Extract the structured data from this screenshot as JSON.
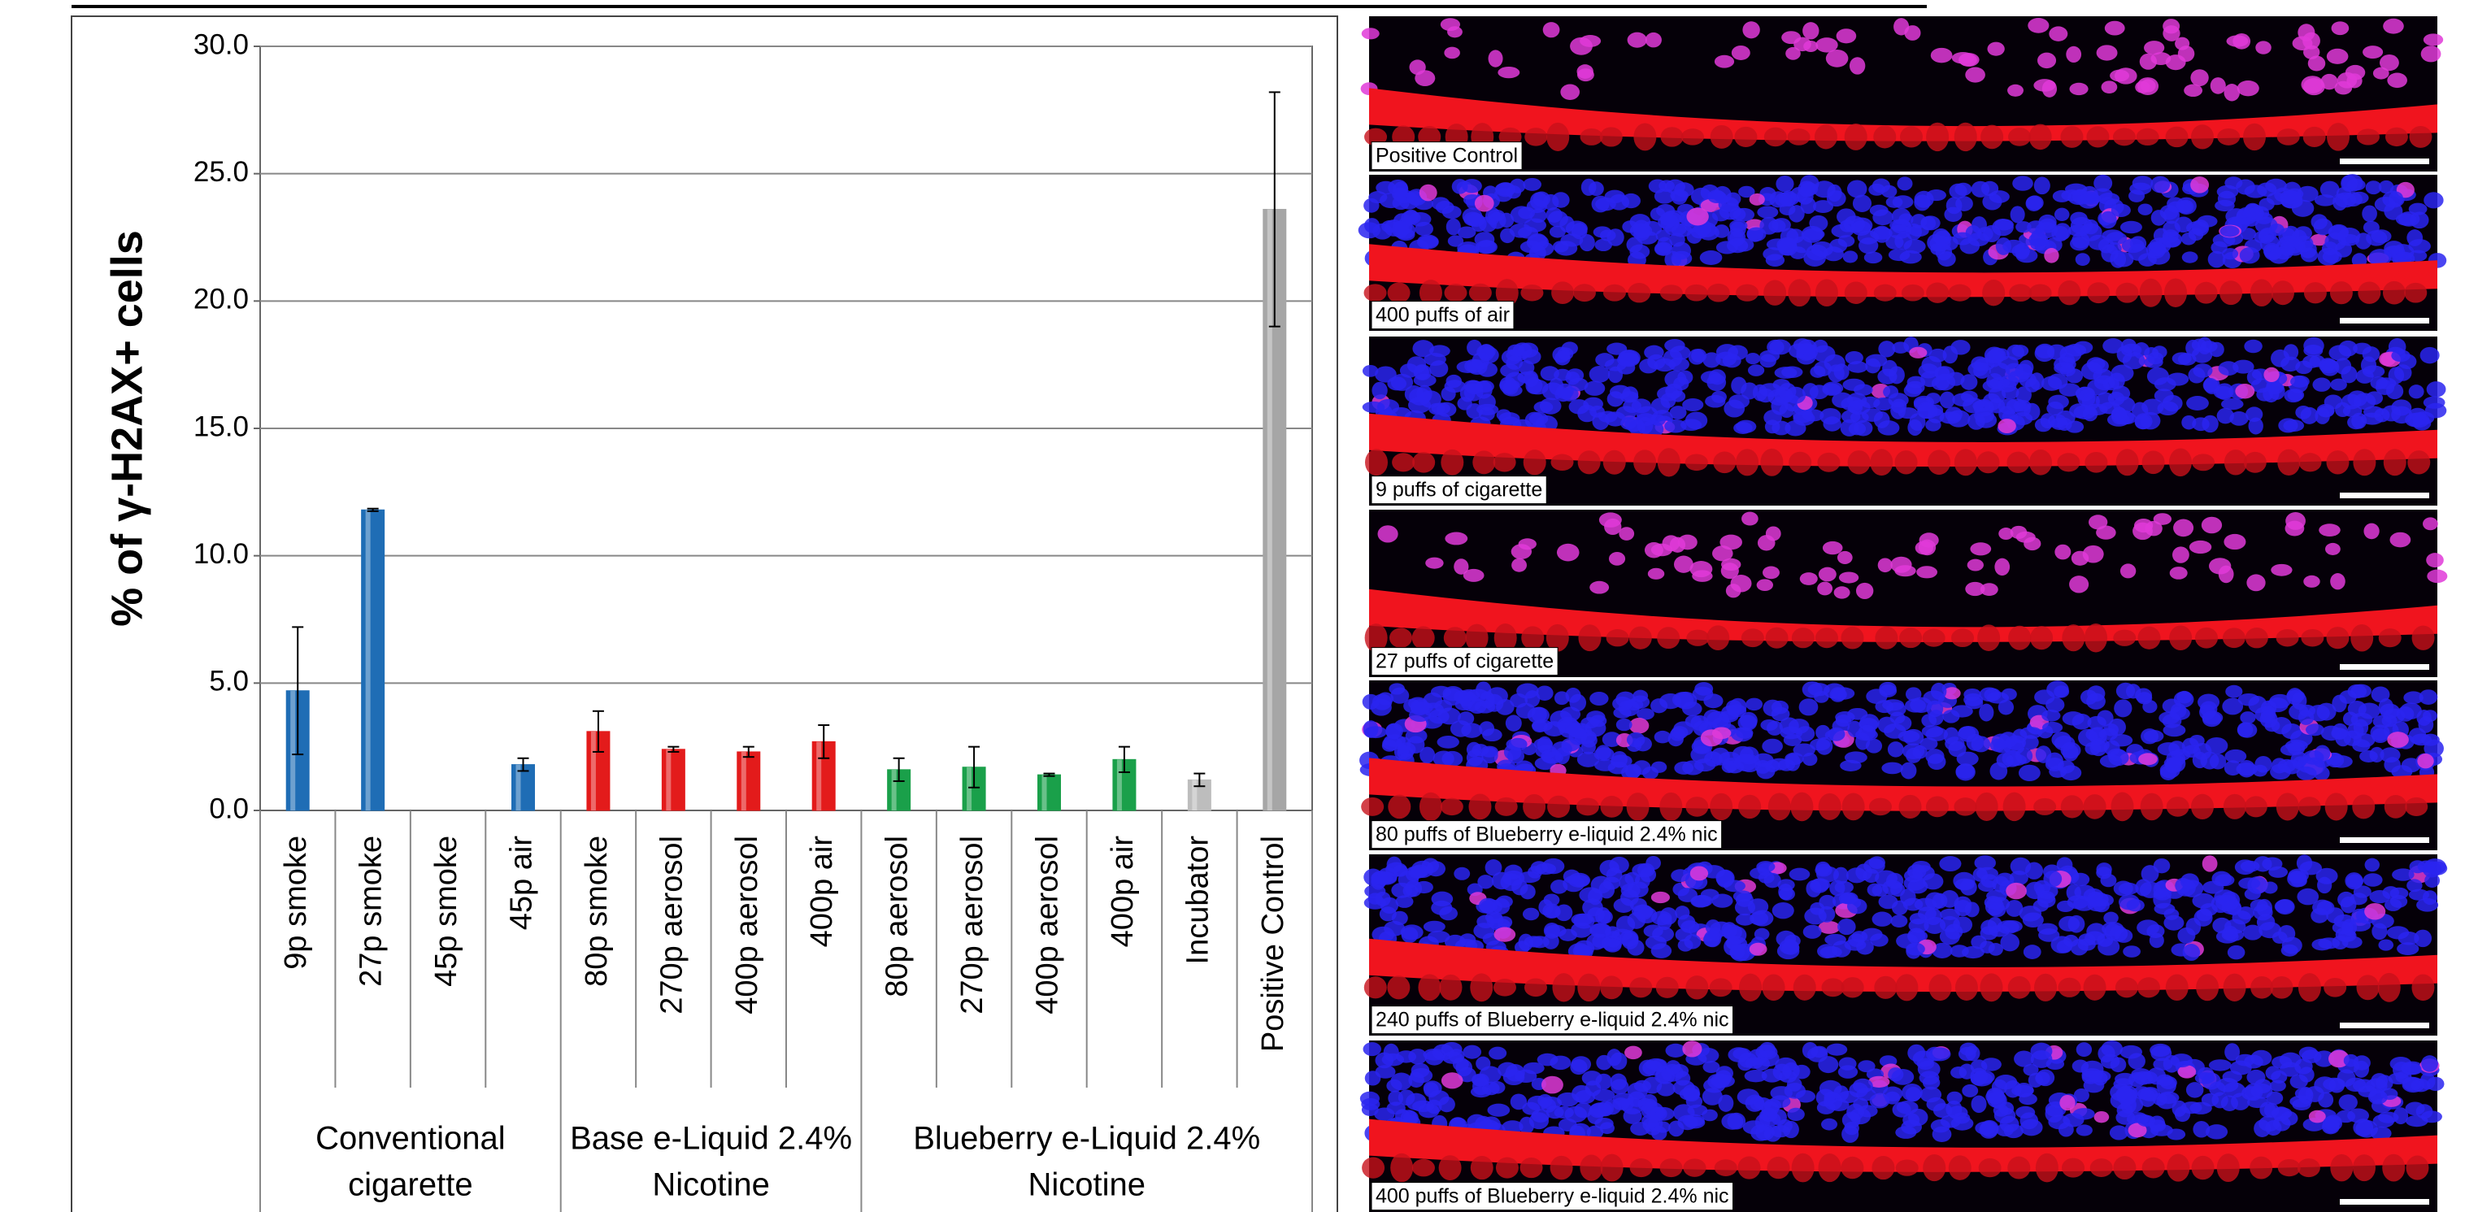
{
  "chart_data": {
    "type": "bar",
    "y_label": "% of γ-H2AX+ cells",
    "categories": [
      "9p smoke",
      "27p smoke",
      "45p smoke",
      "45p air",
      "80p smoke",
      "270p aerosol",
      "400p aerosol",
      "400p air",
      "80p aerosol",
      "270p aerosol",
      "400p aerosol",
      "400p air",
      "Incubator",
      "Positive Control"
    ],
    "values": [
      4.7,
      11.8,
      0,
      1.8,
      3.1,
      2.4,
      2.3,
      2.7,
      1.6,
      1.7,
      1.4,
      2.0,
      1.2,
      23.6
    ],
    "errors": [
      2.5,
      0.05,
      0,
      0.25,
      0.8,
      0.1,
      0.2,
      0.65,
      0.45,
      0.8,
      0.05,
      0.5,
      0.25,
      4.6
    ],
    "colors": [
      "#1f6db5",
      "#1f6db5",
      "#1f6db5",
      "#1f6db5",
      "#e31b1b",
      "#e31b1b",
      "#e31b1b",
      "#e31b1b",
      "#1aa04a",
      "#1aa04a",
      "#1aa04a",
      "#1aa04a",
      "#bdbdbd",
      "#a6a6a6"
    ],
    "groups": [
      {
        "lines": [
          "Conventional",
          "cigarette"
        ],
        "start": 0,
        "end": 3
      },
      {
        "lines": [
          "Base e-Liquid 2.4%",
          "Nicotine"
        ],
        "start": 4,
        "end": 7
      },
      {
        "lines": [
          "Blueberry e-Liquid 2.4%",
          "Nicotine"
        ],
        "start": 8,
        "end": 13
      }
    ],
    "ylim": [
      0,
      30
    ],
    "yticks": [
      {
        "value": 0,
        "label": "0.0"
      },
      {
        "value": 5,
        "label": "5.0"
      },
      {
        "value": 10,
        "label": "10.0"
      },
      {
        "value": 15,
        "label": "15.0"
      },
      {
        "value": 20,
        "label": "20.0"
      },
      {
        "value": 25,
        "label": "25.0"
      },
      {
        "value": 30,
        "label": "30.0"
      }
    ],
    "grid": true
  },
  "image_panels": [
    "Positive Control",
    "400 puffs of air",
    "9 puffs of cigarette",
    "27 puffs of cigarette",
    "80 puffs of Blueberry e-liquid 2.4% nic",
    "240 puffs of Blueberry e-liquid 2.4% nic",
    "400 puffs of Blueberry e-liquid 2.4% nic"
  ]
}
